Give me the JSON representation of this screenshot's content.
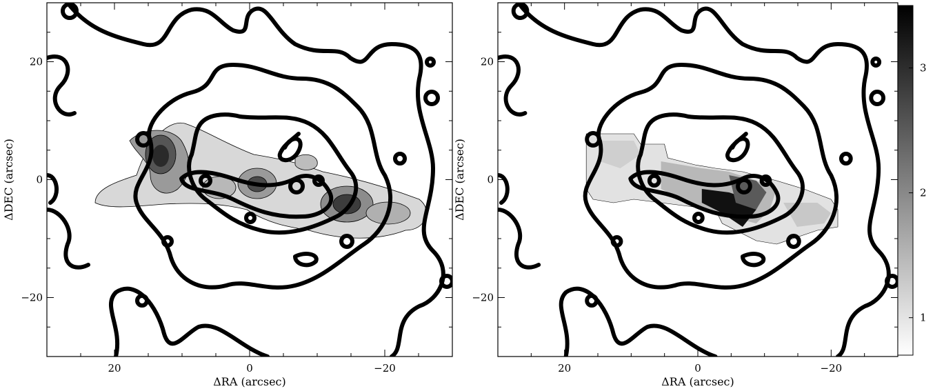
{
  "chart_data": [
    {
      "type": "heatmap",
      "panel": "left",
      "xlabel": "ΔRA (arcsec)",
      "ylabel": "ΔDEC (arcsec)",
      "xlim": [
        30,
        -30
      ],
      "ylim": [
        -30,
        30
      ],
      "xticks": [
        20,
        0,
        -20
      ],
      "xtick_labels": [
        "20",
        "0",
        "−20"
      ],
      "yticks": [
        20,
        0,
        -20
      ],
      "ytick_labels": [
        "20",
        "0",
        "−20"
      ],
      "grayscale": "filled intensity contours along a bar running from upper-left to lower-right",
      "overlay": "thick black contours"
    },
    {
      "type": "heatmap",
      "panel": "right",
      "xlabel": "ΔRA (arcsec)",
      "ylabel": "ΔDEC (arcsec)",
      "xlim": [
        30,
        -30
      ],
      "ylim": [
        -30,
        30
      ],
      "xticks": [
        20,
        0,
        -20
      ],
      "xtick_labels": [
        "20",
        "0",
        "−20"
      ],
      "yticks": [
        20,
        0,
        -20
      ],
      "ytick_labels": [
        "20",
        "0",
        "−20"
      ],
      "colorbar": {
        "range": [
          0.7,
          3.5
        ],
        "ticks": [
          1,
          2,
          3
        ],
        "tick_labels": [
          "1",
          "2",
          "3"
        ],
        "colormap": "white-to-black grayscale"
      },
      "overlay": "thick black contours"
    }
  ]
}
